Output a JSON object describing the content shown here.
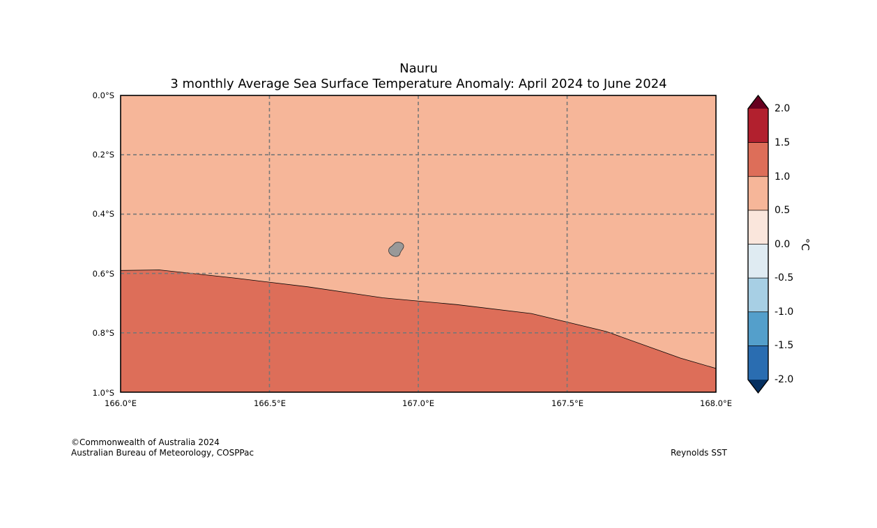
{
  "map": {
    "title": "Nauru",
    "subtitle": "3 monthly Average Sea Surface Temperature Anomaly: April 2024 to June 2024",
    "lat_labels": [
      "0.0°S",
      "0.2°S",
      "0.4°S",
      "0.6°S",
      "0.8°S",
      "1.0°S"
    ],
    "lon_labels": [
      "166.0°E",
      "166.5°E",
      "167.0°E",
      "167.5°E",
      "168.0°E"
    ],
    "lat_range": [
      0.0,
      -1.0
    ],
    "lon_range": [
      166.0,
      168.0
    ],
    "gridlines": true,
    "fill_colors": {
      "anomaly_0_5_to_1_0": "#f6b699",
      "anomaly_1_0_to_1_5": "#dd6e59",
      "land": "#999999",
      "gridline": "#777777"
    },
    "contour_1_0_boundary": [
      {
        "lon": 166.0,
        "lat": -0.59
      },
      {
        "lon": 166.13,
        "lat": -0.588
      },
      {
        "lon": 166.38,
        "lat": -0.615
      },
      {
        "lon": 166.63,
        "lat": -0.645
      },
      {
        "lon": 166.88,
        "lat": -0.682
      },
      {
        "lon": 167.13,
        "lat": -0.705
      },
      {
        "lon": 167.38,
        "lat": -0.735
      },
      {
        "lon": 167.63,
        "lat": -0.795
      },
      {
        "lon": 167.88,
        "lat": -0.885
      },
      {
        "lon": 168.0,
        "lat": -0.92
      }
    ]
  },
  "colorbar": {
    "unit": "°C",
    "ticks": [
      "2.0",
      "1.5",
      "1.0",
      "0.5",
      "0.0",
      "-0.5",
      "-1.0",
      "-1.5",
      "-2.0"
    ],
    "bands": [
      "#b2202e",
      "#dd6e59",
      "#f6b699",
      "#fae6dc",
      "#dfebf2",
      "#a7cfe4",
      "#549fcb",
      "#2a6db1"
    ],
    "over_color": "#67001f",
    "under_color": "#053061"
  },
  "footer": {
    "copyright": "©Commonwealth of Australia 2024",
    "agency": "Australian Bureau of Meteorology, COSPPac",
    "source": "Reynolds SST"
  }
}
